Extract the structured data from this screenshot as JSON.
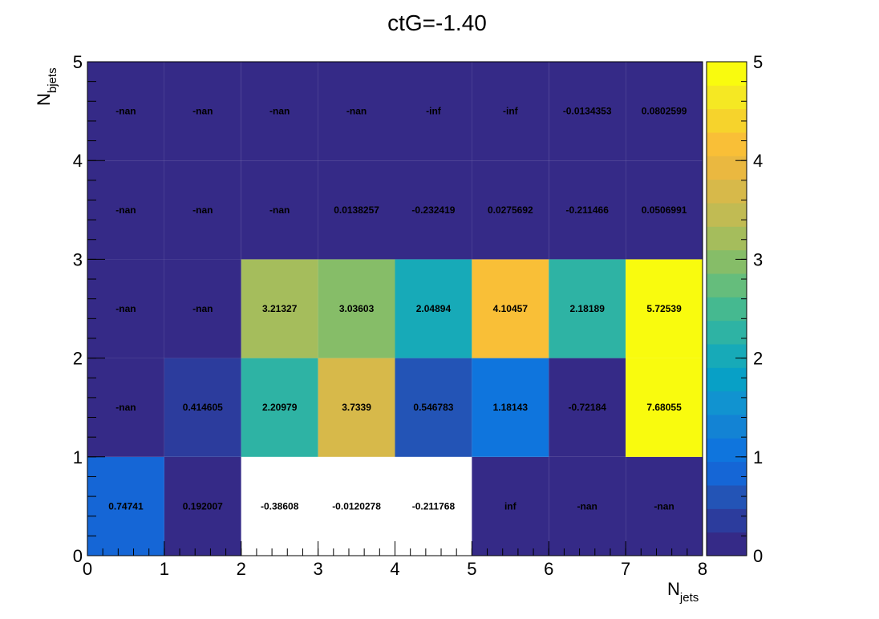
{
  "chart_data": {
    "type": "heatmap",
    "title": "ctG=-1.40",
    "xlabel_main": "N",
    "xlabel_sub": "jets",
    "ylabel_main": "N",
    "ylabel_sub": "bjets",
    "x_edges": [
      0,
      1,
      2,
      3,
      4,
      5,
      6,
      7,
      8
    ],
    "y_edges": [
      0,
      1,
      2,
      3,
      4,
      5
    ],
    "x_tick_labels": [
      "0",
      "1",
      "2",
      "3",
      "4",
      "5",
      "6",
      "7",
      "8"
    ],
    "y_tick_labels": [
      "0",
      "1",
      "2",
      "3",
      "4",
      "5"
    ],
    "xlim": [
      0,
      8
    ],
    "ylim": [
      0,
      5
    ],
    "zlim": [
      0,
      5
    ],
    "colorbar_ticks": [
      "0",
      "1",
      "2",
      "3",
      "4",
      "5"
    ],
    "palette": [
      "#352a87",
      "#2c3c9d",
      "#2354b6",
      "#1566d6",
      "#0f75dd",
      "#1383d4",
      "#1193d0",
      "#08a0c6",
      "#17aab8",
      "#2eb3a4",
      "#45b990",
      "#65bd7c",
      "#86bd68",
      "#a5bd5c",
      "#c1bb53",
      "#d7b94a",
      "#eab840",
      "#f9bf37",
      "#f6d32c",
      "#f5e823",
      "#f9fb0e"
    ],
    "underflow_color": "#ffffff",
    "rows": [
      {
        "y": 0.5,
        "labels": [
          "0.74741",
          "0.192007",
          "-0.38608",
          "-0.0120278",
          "-0.211768",
          "inf",
          "-nan",
          "-nan"
        ],
        "values": [
          0.74741,
          0.192007,
          -0.38608,
          -0.0120278,
          -0.211768,
          null,
          null,
          null
        ],
        "fill_as": [
          "value",
          "value",
          "value",
          "value",
          "value",
          "min",
          "min",
          "min"
        ]
      },
      {
        "y": 1.5,
        "labels": [
          "-nan",
          "0.414605",
          "2.20979",
          "3.7339",
          "0.546783",
          "1.18143",
          "-0.72184",
          "7.68055"
        ],
        "values": [
          null,
          0.414605,
          2.20979,
          3.7339,
          0.546783,
          1.18143,
          -0.72184,
          7.68055
        ],
        "fill_as": [
          "min",
          "value",
          "value",
          "value",
          "value",
          "value",
          "value_clip",
          "value"
        ]
      },
      {
        "y": 2.5,
        "labels": [
          "-nan",
          "-nan",
          "3.21327",
          "3.03603",
          "2.04894",
          "4.10457",
          "2.18189",
          "5.72539"
        ],
        "values": [
          null,
          null,
          3.21327,
          3.03603,
          2.04894,
          4.10457,
          2.18189,
          5.72539
        ],
        "fill_as": [
          "min",
          "min",
          "value",
          "value",
          "value",
          "value",
          "value",
          "value"
        ]
      },
      {
        "y": 3.5,
        "labels": [
          "-nan",
          "-nan",
          "-nan",
          "0.0138257",
          "-0.232419",
          "0.0275692",
          "-0.211466",
          "0.0506991"
        ],
        "values": [
          null,
          null,
          null,
          0.0138257,
          -0.232419,
          0.0275692,
          -0.211466,
          0.0506991
        ],
        "fill_as": [
          "min",
          "min",
          "min",
          "value",
          "value_clip",
          "value",
          "value_clip",
          "value"
        ]
      },
      {
        "y": 4.5,
        "labels": [
          "-nan",
          "-nan",
          "-nan",
          "-nan",
          "-inf",
          "-inf",
          "-0.0134353",
          "0.0802599"
        ],
        "values": [
          null,
          null,
          null,
          null,
          null,
          null,
          -0.0134353,
          0.0802599
        ],
        "fill_as": [
          "min",
          "min",
          "min",
          "min",
          "min",
          "min",
          "value_clip",
          "value"
        ]
      }
    ]
  }
}
